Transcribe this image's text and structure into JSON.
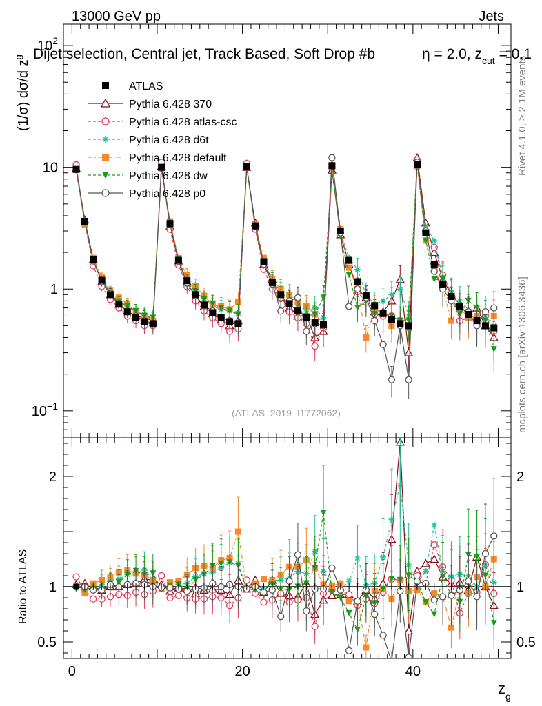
{
  "header": {
    "energy": "13000 GeV pp",
    "process": "Jets",
    "selection": "Dijet selection, Central jet, Track Based, Soft Drop #b",
    "params": "η = 2.0, z",
    "params_sub": "cut",
    "params_end": "= 0.1"
  },
  "side_text": {
    "rivet": "Rivet 4.1.0, ≥ 2.1M events",
    "mcplots": "mcplots.cern.ch [arXiv:1306.3436]"
  },
  "analysis_id": "(ATLAS_2019_I1772062)",
  "chart_data": [
    {
      "panel": "main",
      "type": "line",
      "scale": "log",
      "ylabel": "(1/σ) dσ/d z",
      "ylabel_sub": "g",
      "xlim": [
        -1,
        51.5
      ],
      "ylim": [
        0.06,
        150
      ],
      "yticks": [
        {
          "value": 0.1,
          "base": "10",
          "exp": "−1"
        },
        {
          "value": 1,
          "label": "1"
        },
        {
          "value": 10,
          "label": "10"
        },
        {
          "value": 100,
          "base": "10",
          "exp": "2"
        }
      ],
      "x": [
        0.5,
        1.5,
        2.5,
        3.5,
        4.5,
        5.5,
        6.5,
        7.5,
        8.5,
        9.5,
        10.5,
        11.5,
        12.5,
        13.5,
        14.5,
        15.5,
        16.5,
        17.5,
        18.5,
        19.5,
        20.5,
        21.5,
        22.5,
        23.5,
        24.5,
        25.5,
        26.5,
        27.5,
        28.5,
        29.5,
        30.5,
        31.5,
        32.5,
        33.5,
        34.5,
        35.5,
        36.5,
        37.5,
        38.5,
        39.5,
        40.5,
        41.5,
        42.5,
        43.5,
        44.5,
        45.5,
        46.5,
        47.5,
        48.5,
        49.5
      ],
      "series": [
        {
          "name": "ATLAS",
          "color": "#000000",
          "marker": "square-filled",
          "dash": "none",
          "values": [
            9.6,
            3.6,
            1.75,
            1.18,
            0.9,
            0.75,
            0.65,
            0.58,
            0.54,
            0.52,
            10.0,
            3.45,
            1.72,
            1.17,
            0.9,
            0.74,
            0.64,
            0.58,
            0.54,
            0.52,
            10.2,
            3.3,
            1.68,
            1.13,
            0.9,
            0.76,
            0.66,
            0.58,
            0.53,
            0.51,
            10.3,
            3.0,
            1.72,
            1.15,
            0.88,
            0.73,
            0.63,
            0.56,
            0.52,
            0.5,
            10.5,
            2.9,
            1.6,
            1.1,
            0.87,
            0.72,
            0.62,
            0.55,
            0.5,
            0.48
          ]
        },
        {
          "name": "Pythia 6.428 370",
          "color": "#8b0f1e",
          "marker": "triangle-open",
          "dash": "none",
          "values": [
            9.8,
            3.7,
            1.75,
            1.15,
            0.9,
            0.75,
            0.66,
            0.6,
            0.58,
            0.55,
            10.2,
            3.3,
            1.7,
            1.15,
            0.85,
            0.72,
            0.63,
            0.56,
            0.5,
            0.55,
            10.0,
            3.5,
            1.6,
            1.2,
            0.85,
            0.7,
            0.6,
            0.6,
            0.4,
            0.45,
            9.5,
            2.8,
            1.6,
            1.0,
            0.85,
            0.65,
            0.65,
            0.8,
            1.2,
            0.3,
            12.0,
            3.5,
            2.0,
            1.2,
            0.9,
            0.75,
            0.6,
            0.7,
            0.5,
            0.4
          ]
        },
        {
          "name": "Pythia 6.428 atlas-csc",
          "color": "#e8385a",
          "marker": "circle-open",
          "dash": "4,3",
          "values": [
            10.5,
            3.5,
            1.55,
            1.05,
            0.82,
            0.7,
            0.6,
            0.55,
            0.5,
            0.5,
            11.0,
            3.1,
            1.58,
            1.05,
            0.8,
            0.66,
            0.58,
            0.52,
            0.45,
            0.47,
            10.8,
            3.1,
            1.45,
            1.0,
            0.85,
            0.65,
            0.58,
            0.52,
            0.34,
            0.48,
            10.0,
            2.9,
            1.6,
            0.95,
            0.78,
            0.62,
            0.6,
            0.6,
            0.55,
            0.55,
            11.5,
            3.0,
            2.2,
            1.3,
            0.92,
            0.55,
            0.58,
            0.52,
            0.6,
            0.45
          ]
        },
        {
          "name": "Pythia 6.428 d6t",
          "color": "#1fc49a",
          "marker": "star",
          "dash": "4,3",
          "values": [
            9.5,
            3.6,
            1.7,
            1.2,
            0.95,
            0.8,
            0.72,
            0.65,
            0.62,
            0.55,
            9.8,
            3.5,
            1.75,
            1.2,
            0.98,
            0.83,
            0.72,
            0.68,
            0.66,
            0.63,
            10.0,
            3.3,
            1.65,
            1.2,
            0.95,
            0.82,
            0.75,
            0.65,
            0.7,
            0.58,
            10.5,
            2.9,
            1.8,
            1.45,
            0.9,
            0.75,
            0.8,
            0.9,
            1.0,
            0.6,
            10.8,
            3.3,
            2.5,
            1.25,
            0.95,
            0.8,
            0.68,
            0.55,
            0.6,
            0.5
          ]
        },
        {
          "name": "Pythia 6.428 default",
          "color": "#f5892b",
          "marker": "square-filled",
          "dash": "6,3,2,3",
          "values": [
            9.7,
            3.4,
            1.8,
            1.25,
            0.98,
            0.85,
            0.75,
            0.65,
            0.6,
            0.55,
            9.8,
            3.6,
            1.8,
            1.3,
            1.05,
            0.88,
            0.75,
            0.72,
            0.68,
            0.78,
            10.0,
            3.4,
            1.8,
            1.2,
            1.0,
            0.9,
            0.78,
            0.72,
            0.62,
            0.52,
            10.4,
            3.1,
            1.5,
            1.0,
            0.4,
            0.7,
            0.62,
            0.5,
            0.55,
            0.48,
            10.2,
            2.5,
            1.5,
            1.0,
            0.55,
            0.7,
            0.58,
            0.6,
            0.5,
            0.6
          ]
        },
        {
          "name": "Pythia 6.428 dw",
          "color": "#1a9e1a",
          "marker": "triangle-down-filled",
          "dash": "4,3",
          "values": [
            9.4,
            3.5,
            1.72,
            1.15,
            0.93,
            0.78,
            0.72,
            0.66,
            0.6,
            0.58,
            9.8,
            3.5,
            1.75,
            1.15,
            0.95,
            0.82,
            0.76,
            0.7,
            0.66,
            0.62,
            10.0,
            3.2,
            1.55,
            1.15,
            0.88,
            0.74,
            0.66,
            0.6,
            0.62,
            0.85,
            9.8,
            2.7,
            1.3,
            0.7,
            0.8,
            0.62,
            0.62,
            0.6,
            0.55,
            0.55,
            11.0,
            2.5,
            1.2,
            1.2,
            0.8,
            0.62,
            0.8,
            0.7,
            0.55,
            0.32
          ]
        },
        {
          "name": "Pythia 6.428 p0",
          "color": "#555555",
          "marker": "circle-open",
          "dash": "none",
          "values": [
            9.6,
            3.6,
            1.7,
            1.15,
            0.92,
            0.75,
            0.66,
            0.6,
            0.55,
            0.52,
            9.9,
            3.4,
            1.68,
            1.12,
            0.88,
            0.73,
            0.66,
            0.58,
            0.55,
            0.52,
            10.0,
            3.3,
            1.6,
            1.1,
            0.66,
            0.8,
            0.85,
            0.45,
            0.52,
            0.5,
            12.0,
            2.9,
            0.72,
            1.0,
            0.85,
            0.55,
            0.35,
            0.18,
            0.5,
            0.18,
            11.0,
            3.0,
            1.4,
            1.0,
            0.8,
            0.7,
            0.65,
            0.5,
            0.65,
            0.7
          ]
        }
      ]
    },
    {
      "panel": "ratio",
      "type": "line",
      "ylabel": "Ratio to ATLAS",
      "xlabel": "z",
      "xlabel_sub": "g",
      "xlim": [
        -1,
        51.5
      ],
      "ylim": [
        0.35,
        2.35
      ],
      "yticks": [
        0.5,
        1,
        2
      ],
      "xticks": [
        0,
        20,
        40
      ],
      "series": [
        {
          "name": "Pythia 6.428 370",
          "values": [
            1.02,
            1.03,
            1.0,
            0.97,
            1.0,
            1.0,
            1.02,
            1.03,
            1.07,
            1.06,
            1.02,
            0.96,
            0.99,
            0.98,
            0.94,
            0.97,
            0.98,
            0.97,
            0.93,
            1.06,
            0.98,
            1.06,
            0.95,
            1.06,
            0.94,
            0.92,
            0.91,
            1.03,
            0.75,
            0.88,
            0.92,
            0.93,
            0.93,
            0.87,
            0.97,
            0.89,
            1.03,
            1.43,
            2.31,
            0.6,
            1.14,
            1.21,
            1.25,
            1.09,
            1.03,
            1.04,
            0.97,
            1.27,
            1.0,
            0.83
          ]
        },
        {
          "name": "Pythia 6.428 atlas-csc",
          "values": [
            1.09,
            0.97,
            0.89,
            0.89,
            0.91,
            0.93,
            0.92,
            0.95,
            0.93,
            0.96,
            1.1,
            0.9,
            0.92,
            0.9,
            0.89,
            0.89,
            0.91,
            0.9,
            0.83,
            0.9,
            1.06,
            0.94,
            0.86,
            0.88,
            0.94,
            0.86,
            0.88,
            0.9,
            0.64,
            0.94,
            0.97,
            0.97,
            0.93,
            0.83,
            0.89,
            0.85,
            0.95,
            1.07,
            1.06,
            1.1,
            1.1,
            1.03,
            1.38,
            1.18,
            1.06,
            0.76,
            0.94,
            0.95,
            1.2,
            0.94
          ]
        },
        {
          "name": "Pythia 6.428 d6t",
          "values": [
            0.99,
            1.0,
            0.97,
            1.02,
            1.06,
            1.07,
            1.11,
            1.12,
            1.15,
            1.06,
            0.98,
            1.01,
            1.02,
            1.03,
            1.09,
            1.12,
            1.13,
            1.17,
            1.22,
            1.21,
            0.98,
            1.0,
            0.98,
            1.06,
            1.06,
            1.08,
            1.14,
            1.12,
            1.32,
            1.14,
            1.02,
            0.97,
            1.05,
            1.26,
            1.02,
            1.03,
            1.27,
            1.61,
            1.92,
            1.2,
            1.03,
            1.14,
            1.56,
            1.14,
            1.09,
            1.11,
            1.1,
            1.0,
            1.2,
            1.04
          ]
        },
        {
          "name": "Pythia 6.428 default",
          "values": [
            1.01,
            0.94,
            1.03,
            1.06,
            1.09,
            1.13,
            1.15,
            1.12,
            1.11,
            1.06,
            0.98,
            1.04,
            1.05,
            1.11,
            1.17,
            1.19,
            1.17,
            1.24,
            1.26,
            1.5,
            0.98,
            1.03,
            1.07,
            1.06,
            1.11,
            1.18,
            1.18,
            1.24,
            1.17,
            1.02,
            1.01,
            1.03,
            0.87,
            0.87,
            0.45,
            0.96,
            0.98,
            0.89,
            1.06,
            0.96,
            0.97,
            0.86,
            0.94,
            0.91,
            0.63,
            0.97,
            0.94,
            1.09,
            1.0,
            1.25
          ]
        },
        {
          "name": "Pythia 6.428 dw",
          "values": [
            0.98,
            0.97,
            0.98,
            0.97,
            1.03,
            1.04,
            1.11,
            1.14,
            1.11,
            1.12,
            0.98,
            1.01,
            1.02,
            0.98,
            1.06,
            1.11,
            1.19,
            1.21,
            1.22,
            1.19,
            0.98,
            0.97,
            0.92,
            1.02,
            0.98,
            0.97,
            1.0,
            1.03,
            1.17,
            1.67,
            0.95,
            0.9,
            0.76,
            0.61,
            0.91,
            0.85,
            0.98,
            1.07,
            1.06,
            1.1,
            1.05,
            0.86,
            0.75,
            1.09,
            0.92,
            0.86,
            1.29,
            1.27,
            1.1,
            0.67
          ]
        },
        {
          "name": "Pythia 6.428 p0",
          "values": [
            1.0,
            1.0,
            0.97,
            0.97,
            1.02,
            1.0,
            1.02,
            1.03,
            1.02,
            1.0,
            0.99,
            0.99,
            0.98,
            0.96,
            0.98,
            0.99,
            1.03,
            1.0,
            1.02,
            1.0,
            0.98,
            1.0,
            0.95,
            0.97,
            0.73,
            1.05,
            1.29,
            0.78,
            0.98,
            0.98,
            1.17,
            0.97,
            0.42,
            0.87,
            0.97,
            0.75,
            0.56,
            0.32,
            0.96,
            0.36,
            1.05,
            1.03,
            0.88,
            0.91,
            0.92,
            0.97,
            1.05,
            0.91,
            1.3,
            1.46
          ]
        }
      ]
    }
  ]
}
